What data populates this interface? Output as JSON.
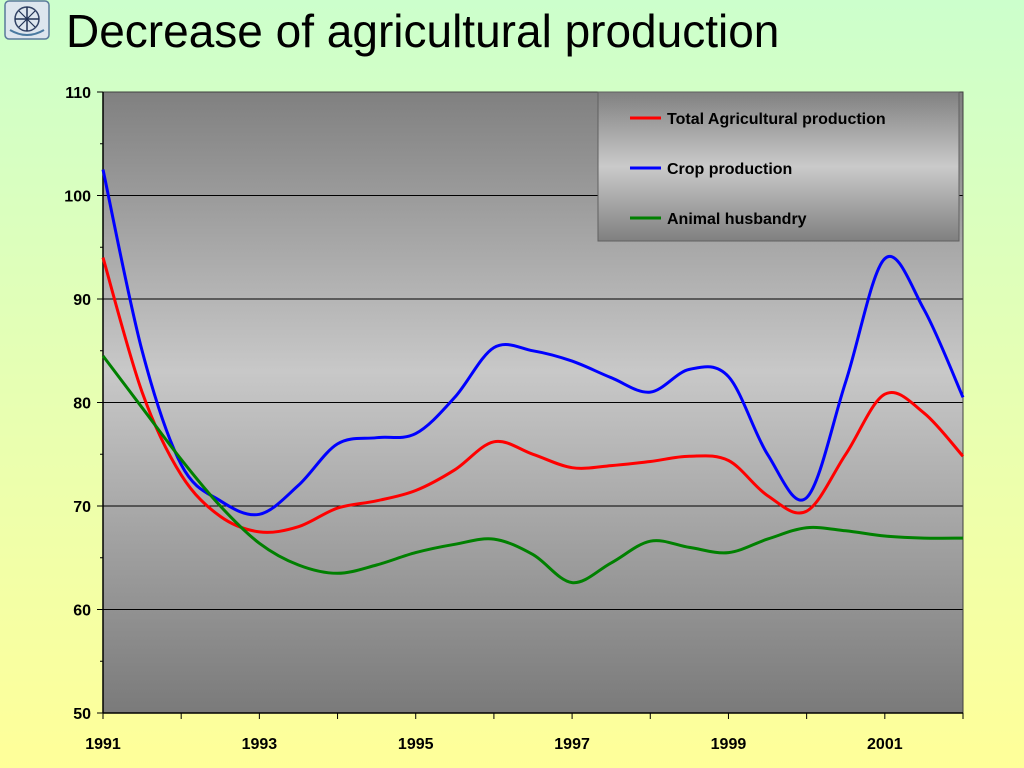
{
  "title": "Decrease of agricultural production",
  "logo": {
    "icon": "university-emblem-icon"
  },
  "chart_data": {
    "type": "line",
    "title": "Decrease of agricultural production",
    "xlabel": "",
    "ylabel": "",
    "x": [
      1991,
      1991.5,
      1992,
      1992.5,
      1993,
      1993.5,
      1994,
      1994.5,
      1995,
      1995.5,
      1996,
      1996.5,
      1997,
      1997.5,
      1998,
      1998.5,
      1999,
      1999.5,
      2000,
      2000.5,
      2001,
      2001.5,
      2002
    ],
    "xlim": [
      1991,
      2002
    ],
    "ylim": [
      50,
      110
    ],
    "x_ticks": [
      1991,
      1993,
      1995,
      1997,
      1999,
      2001
    ],
    "y_ticks": [
      50,
      60,
      70,
      80,
      90,
      100,
      110
    ],
    "grid": "horizontal",
    "legend_position": "top-right",
    "series": [
      {
        "name": "Total Agricultural production",
        "color": "#ff0000",
        "values": [
          94,
          81,
          73,
          69,
          67.5,
          68,
          69.8,
          70.5,
          71.5,
          73.5,
          76.2,
          75,
          73.7,
          73.9,
          74.3,
          74.8,
          74.4,
          71,
          69.5,
          75,
          80.8,
          79,
          74.8
        ]
      },
      {
        "name": "Crop production",
        "color": "#0000ff",
        "values": [
          102.5,
          85,
          74,
          70.5,
          69.2,
          72,
          76,
          76.6,
          77,
          80.5,
          85.3,
          85,
          84,
          82.4,
          81,
          83.2,
          82.5,
          75,
          70.8,
          82,
          93.9,
          89,
          80.5
        ]
      },
      {
        "name": "Animal husbandry",
        "color": "#008000",
        "values": [
          84.5,
          79.5,
          74.5,
          70,
          66.4,
          64.3,
          63.5,
          64.3,
          65.5,
          66.3,
          66.8,
          65.3,
          62.6,
          64.5,
          66.6,
          66,
          65.5,
          66.8,
          67.9,
          67.6,
          67.1,
          66.9,
          66.9
        ]
      }
    ]
  }
}
